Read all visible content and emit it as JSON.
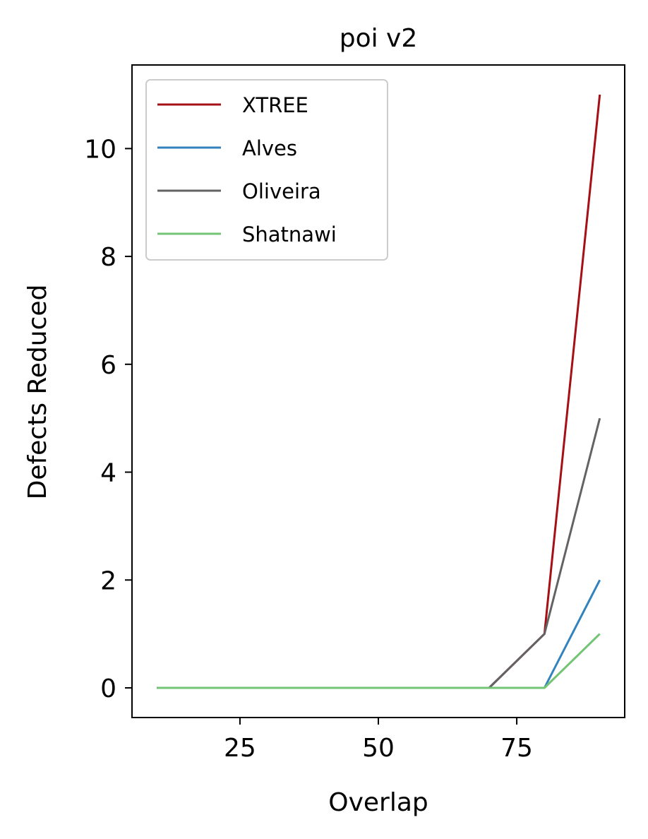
{
  "chart_data": {
    "type": "line",
    "title": "poi v2",
    "xlabel": "Overlap",
    "ylabel": "Defects Reduced",
    "xlim": [
      5.5,
      94.5
    ],
    "ylim": [
      -0.55,
      11.55
    ],
    "xticks": [
      25,
      50,
      75
    ],
    "yticks": [
      0,
      2,
      4,
      6,
      8,
      10
    ],
    "grid": false,
    "legend_position": "upper-left",
    "x": [
      10,
      20,
      30,
      40,
      50,
      60,
      70,
      80,
      90
    ],
    "series": [
      {
        "name": "XTREE",
        "color": "#a50f15",
        "values": [
          0,
          0,
          0,
          0,
          0,
          0,
          0,
          1,
          11
        ]
      },
      {
        "name": "Alves",
        "color": "#3182bd",
        "values": [
          0,
          0,
          0,
          0,
          0,
          0,
          0,
          0,
          2
        ]
      },
      {
        "name": "Oliveira",
        "color": "#636363",
        "values": [
          0,
          0,
          0,
          0,
          0,
          0,
          0,
          1,
          5
        ]
      },
      {
        "name": "Shatnawi",
        "color": "#74c476",
        "values": [
          0,
          0,
          0,
          0,
          0,
          0,
          0,
          0,
          1
        ]
      }
    ]
  }
}
